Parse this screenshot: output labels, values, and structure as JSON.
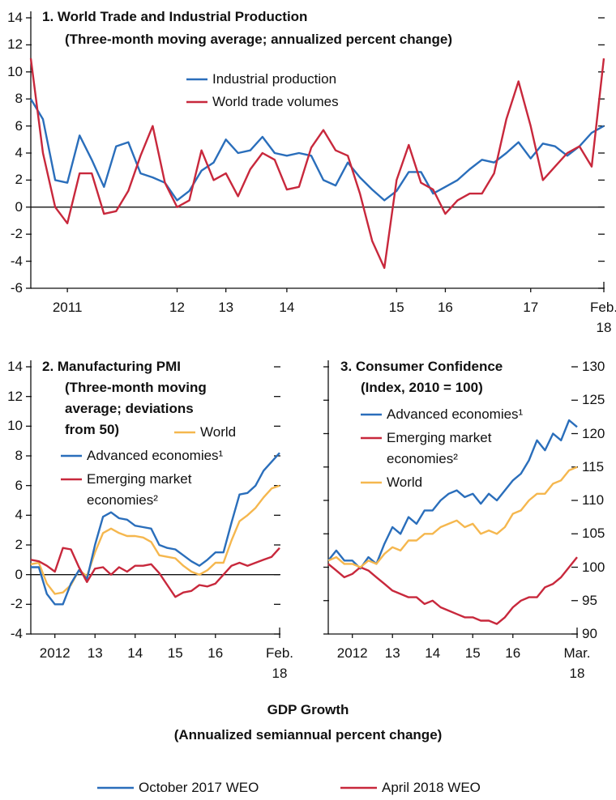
{
  "chart_data": [
    {
      "type": "line",
      "title": "1. World Trade and Industrial Production",
      "subtitle": "(Three-month moving average; annualized percent change)",
      "categories": [
        null,
        null,
        null,
        "2011",
        null,
        null,
        null,
        null,
        null,
        null,
        null,
        null,
        "12",
        null,
        null,
        null,
        "13",
        null,
        null,
        null,
        null,
        "14",
        null,
        null,
        null,
        null,
        null,
        null,
        null,
        null,
        "15",
        null,
        null,
        null,
        "16",
        null,
        null,
        null,
        null,
        null,
        null,
        "17",
        null,
        null,
        null,
        null,
        null,
        "Feb. 18"
      ],
      "series": [
        {
          "name": "Industrial production",
          "color": "#2a6ebb",
          "values": [
            8,
            6.5,
            2,
            1.8,
            5.3,
            3.5,
            1.5,
            4.5,
            4.8,
            2.5,
            2.2,
            1.8,
            0.5,
            1.2,
            2.7,
            3.3,
            5,
            4,
            4.2,
            5.2,
            4,
            3.8,
            4,
            3.8,
            2,
            1.6,
            3.3,
            2.2,
            1.3,
            0.5,
            1.2,
            2.6,
            2.6,
            1,
            1.5,
            2,
            2.8,
            3.5,
            3.3,
            4,
            4.8,
            3.6,
            4.7,
            4.5,
            3.8,
            4.5,
            5.5,
            6
          ]
        },
        {
          "name": "World trade volumes",
          "color": "#c8283c",
          "values": [
            11,
            4,
            0,
            -1.2,
            2.5,
            2.5,
            -0.5,
            -0.3,
            1.2,
            3.8,
            6,
            1.8,
            0,
            0.5,
            4.2,
            2,
            2.5,
            0.8,
            2.8,
            4,
            3.5,
            1.3,
            1.5,
            4.4,
            5.7,
            4.2,
            3.8,
            1,
            -2.5,
            -4.5,
            2,
            4.6,
            1.8,
            1.3,
            -0.5,
            0.5,
            1,
            1,
            2.5,
            6.5,
            9.3,
            6,
            2,
            3,
            4,
            4.5,
            3,
            11
          ]
        }
      ],
      "ylim": [
        -6,
        14
      ],
      "yticks": [
        -6,
        -4,
        -2,
        0,
        2,
        4,
        6,
        8,
        10,
        12,
        14
      ]
    },
    {
      "type": "line",
      "title": "2. Manufacturing PMI",
      "subtitle": "(Three-month moving average; deviations from 50)",
      "categories": [
        null,
        null,
        null,
        "2012",
        null,
        null,
        null,
        null,
        "13",
        null,
        null,
        null,
        null,
        "14",
        null,
        null,
        null,
        null,
        "15",
        null,
        null,
        null,
        null,
        "16",
        null,
        null,
        null,
        null,
        null,
        null,
        null,
        "Feb. 18"
      ],
      "series": [
        {
          "name": "World",
          "color": "#f5b74e",
          "values": [
            0.7,
            0.8,
            -0.6,
            -1.3,
            -1.2,
            -0.7,
            0.3,
            -0.1,
            1.5,
            2.8,
            3.1,
            2.8,
            2.6,
            2.6,
            2.5,
            2.2,
            1.3,
            1.2,
            1.1,
            0.6,
            0.2,
            0,
            0.3,
            0.8,
            0.8,
            2.3,
            3.6,
            4,
            4.5,
            5.2,
            5.8,
            6
          ]
        },
        {
          "name": "Advanced economies¹",
          "color": "#2a6ebb",
          "values": [
            0.5,
            0.5,
            -1.3,
            -2,
            -2,
            -0.6,
            0.3,
            -0.3,
            2,
            3.9,
            4.2,
            3.8,
            3.7,
            3.3,
            3.2,
            3.1,
            2,
            1.8,
            1.7,
            1.3,
            0.9,
            0.6,
            1,
            1.5,
            1.5,
            3.5,
            5.4,
            5.5,
            6,
            7,
            7.6,
            8.2
          ]
        },
        {
          "name": "Emerging market economies²",
          "color": "#c8283c",
          "values": [
            1,
            0.9,
            0.6,
            0.2,
            1.8,
            1.7,
            0.5,
            -0.5,
            0.4,
            0.5,
            0,
            0.5,
            0.2,
            0.6,
            0.6,
            0.7,
            0.1,
            -0.7,
            -1.5,
            -1.2,
            -1.1,
            -0.7,
            -0.8,
            -0.6,
            0,
            0.6,
            0.8,
            0.6,
            0.8,
            1,
            1.2,
            1.8
          ]
        }
      ],
      "ylim": [
        -4,
        14
      ],
      "yticks": [
        -4,
        -2,
        0,
        2,
        4,
        6,
        8,
        10,
        12,
        14
      ]
    },
    {
      "type": "line",
      "title": "3. Consumer Confidence",
      "subtitle": "(Index, 2010 = 100)",
      "categories": [
        null,
        null,
        null,
        "2012",
        null,
        null,
        null,
        null,
        "13",
        null,
        null,
        null,
        null,
        "14",
        null,
        null,
        null,
        null,
        "15",
        null,
        null,
        null,
        null,
        "16",
        null,
        null,
        null,
        null,
        null,
        null,
        null,
        "Mar. 18"
      ],
      "series": [
        {
          "name": "Advanced economies¹",
          "color": "#2a6ebb",
          "axis": "y2",
          "values": [
            101,
            102.5,
            101,
            101,
            99.8,
            101.5,
            100.5,
            103.5,
            106,
            105,
            107.5,
            106.5,
            108.5,
            108.5,
            110,
            111,
            111.5,
            110.5,
            111,
            109.5,
            111,
            110,
            111.5,
            113,
            114,
            116,
            119,
            117.5,
            120,
            119,
            122,
            121
          ]
        },
        {
          "name": "Emerging market economies²",
          "color": "#c8283c",
          "axis": "y2",
          "values": [
            100.5,
            99.5,
            98.5,
            99,
            100,
            99.5,
            98.5,
            97.5,
            96.5,
            96,
            95.5,
            95.5,
            94.5,
            95,
            94,
            93.5,
            93,
            92.5,
            92.5,
            92,
            92,
            91.5,
            92.5,
            94,
            95,
            95.5,
            95.5,
            97,
            97.5,
            98.5,
            100,
            101.5
          ]
        },
        {
          "name": "World",
          "color": "#f5b74e",
          "axis": "y2",
          "values": [
            101,
            101.5,
            100.5,
            100.5,
            100,
            101,
            100.5,
            102,
            103,
            102.5,
            104,
            104,
            105,
            105,
            106,
            106.5,
            107,
            106,
            106.5,
            105,
            105.5,
            105,
            106,
            108,
            108.5,
            110,
            111,
            111,
            112.5,
            113,
            114.5,
            115
          ]
        }
      ],
      "y2lim": [
        90,
        130
      ],
      "y2ticks": [
        90,
        95,
        100,
        105,
        110,
        115,
        120,
        125,
        130
      ]
    },
    {
      "type": "line",
      "title": "GDP Growth",
      "subtitle": "(Annualized semiannual percent change)",
      "series": [
        {
          "name": "October 2017 WEO",
          "color": "#2a6ebb"
        },
        {
          "name": "April 2018 WEO",
          "color": "#c8283c"
        }
      ]
    }
  ]
}
